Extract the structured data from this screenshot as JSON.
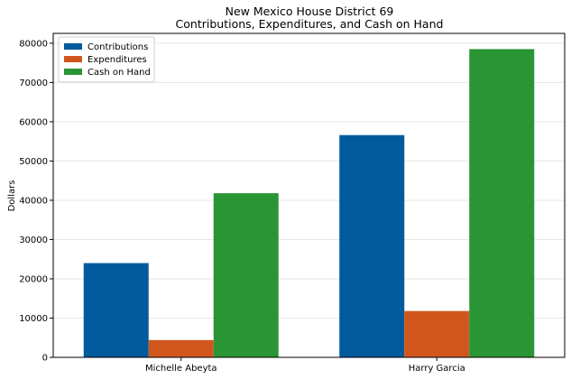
{
  "chart_data": {
    "type": "bar",
    "title": "New Mexico House District 69",
    "subtitle": "Contributions, Expenditures, and Cash on Hand",
    "xlabel": "",
    "ylabel": "Dollars",
    "categories": [
      "Michelle Abeyta",
      "Harry Garcia"
    ],
    "series": [
      {
        "name": "Contributions",
        "color": "#005a9c",
        "values": [
          24000,
          56600
        ]
      },
      {
        "name": "Expenditures",
        "color": "#d1561d",
        "values": [
          4400,
          11800
        ]
      },
      {
        "name": "Cash on Hand",
        "color": "#2a9535",
        "values": [
          41800,
          78500
        ]
      }
    ],
    "ylim": [
      0,
      82500
    ],
    "yticks": [
      0,
      10000,
      20000,
      30000,
      40000,
      50000,
      60000,
      70000,
      80000
    ],
    "grid": "y",
    "legend_position": "top-left"
  }
}
